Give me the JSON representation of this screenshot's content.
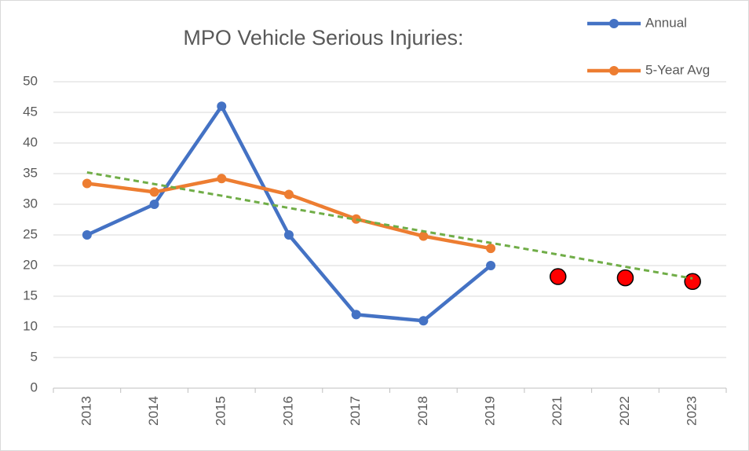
{
  "chart_data": {
    "type": "line",
    "title": "MPO Vehicle Serious Injuries:",
    "categories": [
      "2013",
      "2014",
      "2015",
      "2016",
      "2017",
      "2018",
      "2019",
      "2021",
      "2022",
      "2023"
    ],
    "series": [
      {
        "name": "Annual",
        "color": "#4472c4",
        "values": [
          25,
          30,
          46,
          25,
          12,
          11,
          20,
          null,
          null,
          null
        ]
      },
      {
        "name": "5-Year Avg",
        "color": "#ed7d31",
        "values": [
          33.4,
          32,
          34.2,
          31.6,
          27.6,
          24.8,
          22.8,
          null,
          null,
          null
        ]
      },
      {
        "color": "#ff0000",
        "style": "markers",
        "values": [
          null,
          null,
          null,
          null,
          null,
          null,
          null,
          18.2,
          18,
          17.4
        ]
      },
      {
        "color": "#70ad47",
        "style": "dashed",
        "values": [
          35.2,
          33.3,
          31.4,
          29.4,
          27.5,
          25.6,
          23.7,
          21.8,
          19.8,
          17.9
        ]
      }
    ],
    "ylim": [
      0,
      50
    ],
    "yticks": [
      0,
      5,
      10,
      15,
      20,
      25,
      30,
      35,
      40,
      45,
      50
    ],
    "grid": true,
    "legend": "top-right"
  }
}
